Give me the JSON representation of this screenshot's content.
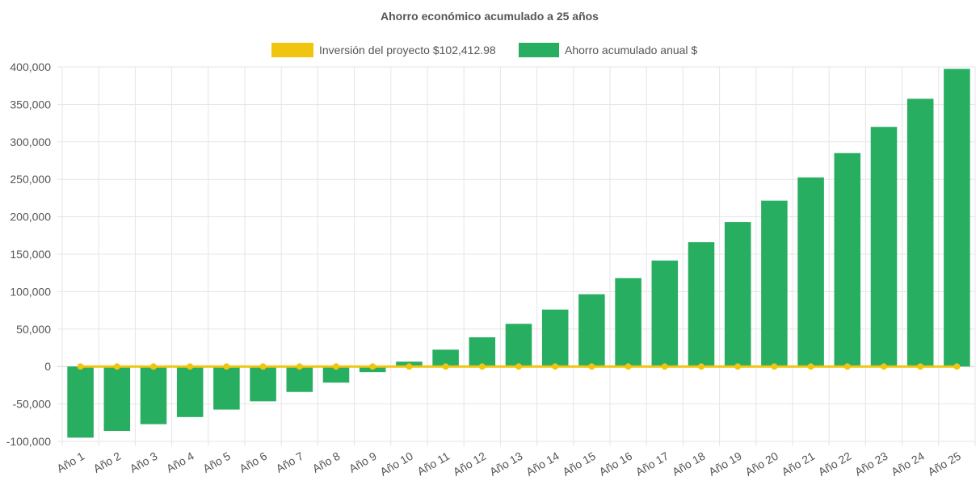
{
  "chart_data": {
    "type": "bar",
    "title": "Ahorro económico acumulado a 25 años",
    "categories": [
      "Año 1",
      "Año 2",
      "Año 3",
      "Año 4",
      "Año 5",
      "Año 6",
      "Año 7",
      "Año 8",
      "Año 9",
      "Año 10",
      "Año 11",
      "Año 12",
      "Año 13",
      "Año 14",
      "Año 15",
      "Año 16",
      "Año 17",
      "Año 18",
      "Año 19",
      "Año 20",
      "Año 21",
      "Año 22",
      "Año 23",
      "Año 24",
      "Año 25"
    ],
    "series": [
      {
        "name": "Inversión del proyecto $102,412.98",
        "type": "line",
        "color": "#f1c40f",
        "values": [
          0,
          0,
          0,
          0,
          0,
          0,
          0,
          0,
          0,
          0,
          0,
          0,
          0,
          0,
          0,
          0,
          0,
          0,
          0,
          0,
          0,
          0,
          0,
          0,
          0
        ]
      },
      {
        "name": "Ahorro acumulado anual $",
        "type": "bar",
        "color": "#27ae60",
        "values": [
          -95000,
          -86000,
          -77000,
          -67500,
          -57500,
          -46500,
          -34000,
          -21500,
          -7500,
          6500,
          22500,
          39000,
          57000,
          76000,
          96500,
          118000,
          141500,
          166000,
          193000,
          221500,
          252500,
          285000,
          320000,
          357500,
          397500
        ]
      }
    ],
    "ylim": [
      -100000,
      400000
    ],
    "yticks": [
      400000,
      350000,
      300000,
      250000,
      200000,
      150000,
      100000,
      50000,
      0,
      -50000,
      -100000
    ],
    "ytick_labels": [
      "400,000",
      "350,000",
      "300,000",
      "250,000",
      "200,000",
      "150,000",
      "100,000",
      "50,000",
      "0",
      "-50,000",
      "-100,000"
    ],
    "grid": true,
    "legend_position": "top"
  }
}
